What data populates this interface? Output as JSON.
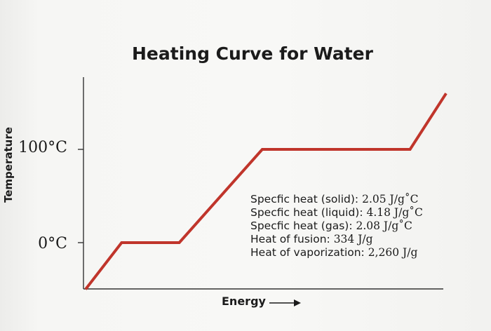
{
  "chart_data": {
    "type": "line",
    "title": "Heating Curve for Water",
    "xlabel": "Energy",
    "ylabel": "Temperature",
    "y_ticks": [
      "100°C",
      "0°C"
    ],
    "y_tick_values": [
      100,
      0
    ],
    "x_axis_arrow": true,
    "series": [
      {
        "color": "#c0352b",
        "points": [
          {
            "x": 0,
            "y": -50
          },
          {
            "x": 10,
            "y": 0
          },
          {
            "x": 26,
            "y": 0
          },
          {
            "x": 49,
            "y": 100
          },
          {
            "x": 90,
            "y": 100
          },
          {
            "x": 100,
            "y": 160
          }
        ]
      }
    ],
    "xlim": [
      0,
      100
    ],
    "ylim": [
      -50,
      195
    ],
    "grid": false,
    "annotations": [
      {
        "label": "Specfic heat (solid): ",
        "value": "2.05 J/g˚C"
      },
      {
        "label": "Specfic heat (liquid): ",
        "value": "4.18 J/g˚C"
      },
      {
        "label": "Specfic heat (gas): ",
        "value": "2.08 J/g˚C"
      },
      {
        "label": "Heat of fusion: ",
        "value": "334 J/g"
      },
      {
        "label": "Heat of vaporization: ",
        "value": "2,260 J/g"
      }
    ]
  }
}
